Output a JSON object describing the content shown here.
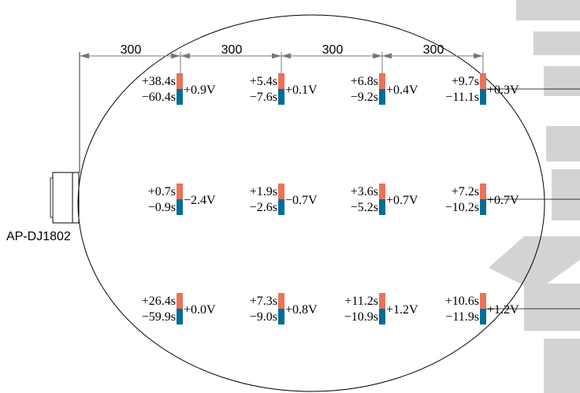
{
  "device_label": "AP-DJ1802",
  "dimensions": [
    "300",
    "300",
    "300",
    "300"
  ],
  "colors": {
    "top_bar": "#E9735B",
    "bottom_bar": "#006D95",
    "watermark": "#D3D3D3",
    "dimension_line": "#777777"
  },
  "points": [
    {
      "row": 1,
      "col": 1,
      "plus": "+38.4s",
      "minus": "−60.4s",
      "voltage": "+0.9V"
    },
    {
      "row": 1,
      "col": 2,
      "plus": "+5.4s",
      "minus": "−7.6s",
      "voltage": "+0.1V"
    },
    {
      "row": 1,
      "col": 3,
      "plus": "+6.8s",
      "minus": "−9.2s",
      "voltage": "+0.4V"
    },
    {
      "row": 1,
      "col": 4,
      "plus": "+9.7s",
      "minus": "−11.1s",
      "voltage": "+0.3V"
    },
    {
      "row": 2,
      "col": 1,
      "plus": "+0.7s",
      "minus": "−0.9s",
      "voltage": "−2.4V"
    },
    {
      "row": 2,
      "col": 2,
      "plus": "+1.9s",
      "minus": "−2.6s",
      "voltage": "−0.7V"
    },
    {
      "row": 2,
      "col": 3,
      "plus": "+3.6s",
      "minus": "−5.2s",
      "voltage": "+0.7V"
    },
    {
      "row": 2,
      "col": 4,
      "plus": "+7.2s",
      "minus": "−10.2s",
      "voltage": "+0.7V"
    },
    {
      "row": 3,
      "col": 1,
      "plus": "+26.4s",
      "minus": "−59.9s",
      "voltage": "+0.0V"
    },
    {
      "row": 3,
      "col": 2,
      "plus": "+7.3s",
      "minus": "−9.0s",
      "voltage": "+0.8V"
    },
    {
      "row": 3,
      "col": 3,
      "plus": "+11.2s",
      "minus": "−10.9s",
      "voltage": "+1.2V"
    },
    {
      "row": 3,
      "col": 4,
      "plus": "+10.6s",
      "minus": "−11.9s",
      "voltage": "+1.2V"
    }
  ]
}
